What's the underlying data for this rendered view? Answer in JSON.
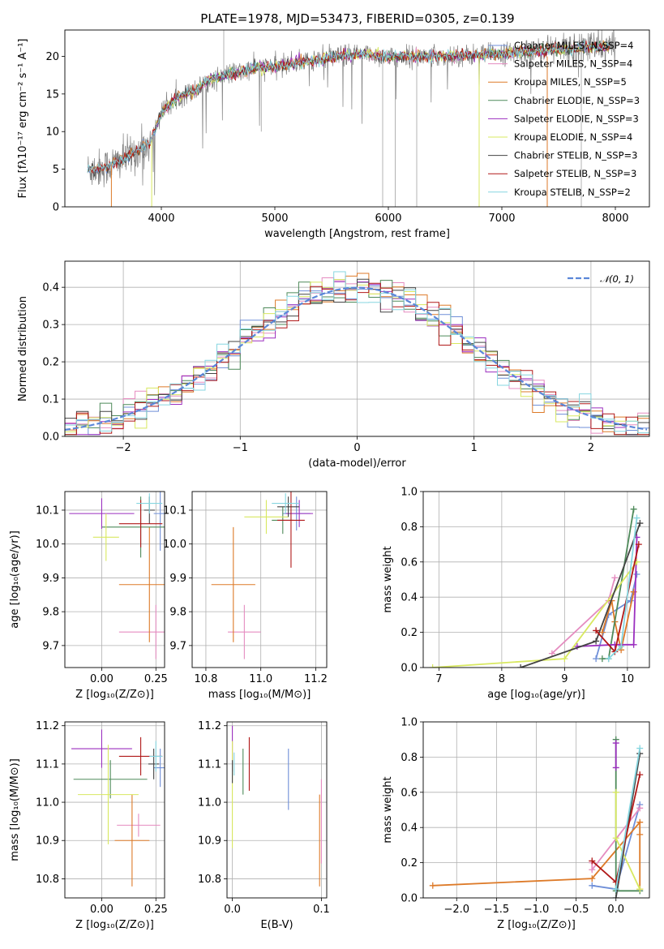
{
  "page": {
    "title": "PLATE=1978, MJD=53473, FIBERID=0305, z=0.139"
  },
  "palette": {
    "Chabrier MILES": "#6f8fd8",
    "Salpeter MILES": "#e58cc0",
    "Kroupa MILES": "#dd7a28",
    "Chabrier ELODIE": "#4e8a5a",
    "Salpeter ELODIE": "#9b2fbf",
    "Kroupa ELODIE": "#d8e860",
    "Chabrier STELIB": "#444444",
    "Salpeter STELIB": "#b01818",
    "Kroupa STELIB": "#86d6e0",
    "data": "#808080",
    "normal": "#5b87d8"
  },
  "chart_data": [
    {
      "id": "spectrum",
      "type": "line",
      "title": "PLATE=1978, MJD=53473, FIBERID=0305, z=0.139",
      "xlabel": "wavelength [Angstrom, rest frame]",
      "ylabel": "Flux [fλ10⁻¹⁷ erg cm⁻² s⁻¹ A⁻¹]",
      "xlim": [
        3150,
        8300
      ],
      "ylim": [
        0,
        23.5
      ],
      "xticks": [
        "4000",
        "5000",
        "6000",
        "7000",
        "8000"
      ],
      "yticks": [
        "0",
        "5",
        "10",
        "15",
        "20"
      ],
      "legend_position": "top-right",
      "legend": [
        "Chabrier MILES, N_SSP=4",
        "Salpeter MILES, N_SSP=4",
        "Kroupa MILES, N_SSP=5",
        "Chabrier ELODIE, N_SSP=3",
        "Salpeter ELODIE, N_SSP=3",
        "Kroupa ELODIE, N_SSP=4",
        "Chabrier STELIB, N_SSP=3",
        "Salpeter STELIB, N_SSP=3",
        "Kroupa STELIB, N_SSP=2"
      ],
      "continuum": [
        [
          3350,
          4.9
        ],
        [
          3500,
          5.2
        ],
        [
          3650,
          6.2
        ],
        [
          3800,
          7.5
        ],
        [
          3900,
          8.5
        ],
        [
          4000,
          12.5
        ],
        [
          4100,
          14.0
        ],
        [
          4200,
          15.0
        ],
        [
          4300,
          15.4
        ],
        [
          4400,
          16.7
        ],
        [
          4500,
          17.2
        ],
        [
          4600,
          17.7
        ],
        [
          4700,
          17.9
        ],
        [
          4800,
          18.3
        ],
        [
          4900,
          18.6
        ],
        [
          5000,
          18.6
        ],
        [
          5200,
          19.2
        ],
        [
          5400,
          19.6
        ],
        [
          5600,
          20.1
        ],
        [
          5800,
          20.3
        ],
        [
          6000,
          19.9
        ],
        [
          6200,
          20.0
        ],
        [
          6400,
          20.0
        ],
        [
          6600,
          20.1
        ],
        [
          6800,
          20.2
        ],
        [
          7000,
          20.4
        ],
        [
          7200,
          20.6
        ],
        [
          7400,
          20.8
        ],
        [
          7600,
          21.0
        ],
        [
          7800,
          21.3
        ],
        [
          8000,
          21.2
        ]
      ],
      "model_ranges": [
        [
          3350,
          3950
        ],
        [
          3950,
          7950
        ],
        [
          3350,
          7950
        ],
        [
          3950,
          7950
        ],
        [
          3950,
          7950
        ],
        [
          3950,
          7950
        ],
        [
          3350,
          7950
        ],
        [
          3350,
          7950
        ],
        [
          3350,
          7950
        ]
      ],
      "data_range": [
        3350,
        8000
      ],
      "grid": false
    },
    {
      "id": "residuals",
      "type": "histogram",
      "xlabel": "(data-model)/error",
      "ylabel": "Normed distribution",
      "xlim": [
        -2.5,
        2.5
      ],
      "ylim": [
        0,
        0.47
      ],
      "xticks": [
        "−2",
        "−1",
        "0",
        "1",
        "2"
      ],
      "yticks": [
        "0.0",
        "0.1",
        "0.2",
        "0.3",
        "0.4"
      ],
      "legend": [
        "𝒩(0, 1)"
      ],
      "legend_position": "top-right",
      "bin_width": 0.1,
      "grid": true
    },
    {
      "id": "age_vs_Z",
      "type": "errorbar",
      "xlabel": "Z [log₁₀(Z/Z⊙)]",
      "ylabel": "age  [log₁₀(age/yr)]",
      "xlim": [
        -0.17,
        0.29
      ],
      "ylim": [
        9.635,
        10.155
      ],
      "xticks": [
        "0.00",
        "0.25"
      ],
      "xtick_values": [
        0,
        0.25
      ],
      "yticks": [
        "9.7",
        "9.8",
        "9.9",
        "10.0",
        "10.1"
      ],
      "ytick_values": [
        9.7,
        9.8,
        9.9,
        10.0,
        10.1
      ],
      "points": [
        {
          "x": 0.27,
          "y": 10.09,
          "xerr": 0.03,
          "yerr": 0.11
        },
        {
          "x": 0.25,
          "y": 9.74,
          "xerr": 0.17,
          "yerr": 0.08
        },
        {
          "x": 0.22,
          "y": 9.88,
          "xerr": 0.14,
          "yerr": 0.17
        },
        {
          "x": 0.18,
          "y": 10.05,
          "xerr": 0.18,
          "yerr": 0.09
        },
        {
          "x": 0.0,
          "y": 10.09,
          "xerr": 0.15,
          "yerr": 0.045
        },
        {
          "x": 0.02,
          "y": 10.02,
          "xerr": 0.06,
          "yerr": 0.07
        },
        {
          "x": 0.22,
          "y": 10.1,
          "xerr": 0.025,
          "yerr": 0.04
        },
        {
          "x": 0.18,
          "y": 10.06,
          "xerr": 0.1,
          "yerr": 0.07
        },
        {
          "x": 0.22,
          "y": 10.12,
          "xerr": 0.06,
          "yerr": 0.03
        }
      ],
      "grid": true
    },
    {
      "id": "age_vs_mass",
      "type": "errorbar",
      "xlabel": "mass [log₁₀(M/M⊙)]",
      "ylabel": "",
      "xlim": [
        10.75,
        11.24
      ],
      "ylim": [
        9.635,
        10.155
      ],
      "xticks": [
        "10.8",
        "11.0",
        "11.2"
      ],
      "xtick_values": [
        10.8,
        11.0,
        11.2
      ],
      "yticks": [
        "9.7",
        "9.8",
        "9.9",
        "10.0",
        "10.1"
      ],
      "ytick_values": [
        9.7,
        9.8,
        9.9,
        10.0,
        10.1
      ],
      "points": [
        {
          "x": 11.13,
          "y": 10.09,
          "xerr": 0.05,
          "yerr": 0.05
        },
        {
          "x": 10.94,
          "y": 9.74,
          "xerr": 0.06,
          "yerr": 0.08
        },
        {
          "x": 10.9,
          "y": 9.88,
          "xerr": 0.08,
          "yerr": 0.17
        },
        {
          "x": 11.08,
          "y": 10.07,
          "xerr": 0.04,
          "yerr": 0.04
        },
        {
          "x": 11.14,
          "y": 10.09,
          "xerr": 0.05,
          "yerr": 0.04
        },
        {
          "x": 11.02,
          "y": 10.08,
          "xerr": 0.08,
          "yerr": 0.05
        },
        {
          "x": 11.1,
          "y": 10.11,
          "xerr": 0.04,
          "yerr": 0.03
        },
        {
          "x": 11.11,
          "y": 10.07,
          "xerr": 0.05,
          "yerr": 0.14
        },
        {
          "x": 11.09,
          "y": 10.12,
          "xerr": 0.05,
          "yerr": 0.03
        }
      ],
      "grid": true
    },
    {
      "id": "weight_vs_age",
      "type": "line",
      "xlabel": "age  [log₁₀(age/yr)]",
      "ylabel": "mass weight",
      "xlim": [
        6.75,
        10.35
      ],
      "ylim": [
        0,
        1.0
      ],
      "xticks": [
        "7",
        "8",
        "9",
        "10"
      ],
      "xtick_values": [
        7,
        8,
        9,
        10
      ],
      "yticks": [
        "0.0",
        "0.2",
        "0.4",
        "0.6",
        "0.8",
        "1.0"
      ],
      "ytick_values": [
        0,
        0.2,
        0.4,
        0.6,
        0.8,
        1.0
      ],
      "series": [
        {
          "points": [
            [
              9.5,
              0.05
            ],
            [
              9.7,
              0.3
            ],
            [
              10.05,
              0.38
            ],
            [
              10.15,
              0.53
            ]
          ]
        },
        {
          "points": [
            [
              8.8,
              0.08
            ],
            [
              9.7,
              0.38
            ],
            [
              9.8,
              0.51
            ]
          ]
        },
        {
          "points": [
            [
              9.6,
              0.2
            ],
            [
              9.75,
              0.38
            ],
            [
              9.8,
              0.26
            ],
            [
              9.9,
              0.1
            ],
            [
              10.1,
              0.43
            ]
          ]
        },
        {
          "points": [
            [
              9.6,
              0.05
            ],
            [
              9.7,
              0.05
            ],
            [
              10.1,
              0.9
            ]
          ]
        },
        {
          "points": [
            [
              9.2,
              0.12
            ],
            [
              9.8,
              0.13
            ],
            [
              10.1,
              0.13
            ],
            [
              10.15,
              0.74
            ]
          ]
        },
        {
          "points": [
            [
              6.9,
              0.0
            ],
            [
              9.0,
              0.05
            ],
            [
              10.15,
              0.6
            ]
          ]
        },
        {
          "points": [
            [
              8.3,
              0.0
            ],
            [
              9.5,
              0.15
            ],
            [
              10.2,
              0.82
            ]
          ]
        },
        {
          "points": [
            [
              9.5,
              0.21
            ],
            [
              9.8,
              0.09
            ],
            [
              10.18,
              0.7
            ]
          ]
        },
        {
          "points": [
            [
              9.7,
              0.05
            ],
            [
              9.9,
              0.12
            ],
            [
              10.15,
              0.85
            ]
          ]
        }
      ],
      "grid": true
    },
    {
      "id": "mass_vs_Z",
      "type": "errorbar",
      "xlabel": "Z [log₁₀(Z/Z⊙)]",
      "ylabel": "mass [log₁₀(M/M⊙)]",
      "xlim": [
        -0.17,
        0.29
      ],
      "ylim": [
        10.75,
        11.21
      ],
      "xticks": [
        "0.00",
        "0.25"
      ],
      "xtick_values": [
        0,
        0.25
      ],
      "yticks": [
        "10.8",
        "10.9",
        "11.0",
        "11.1",
        "11.2"
      ],
      "ytick_values": [
        10.8,
        10.9,
        11.0,
        11.1,
        11.2
      ],
      "points": [
        {
          "x": 0.27,
          "y": 11.09,
          "xerr": 0.03,
          "yerr": 0.05
        },
        {
          "x": 0.17,
          "y": 10.94,
          "xerr": 0.1,
          "yerr": 0.03
        },
        {
          "x": 0.14,
          "y": 10.9,
          "xerr": 0.08,
          "yerr": 0.12
        },
        {
          "x": 0.04,
          "y": 11.06,
          "xerr": 0.17,
          "yerr": 0.05
        },
        {
          "x": 0.0,
          "y": 11.14,
          "xerr": 0.14,
          "yerr": 0.05
        },
        {
          "x": 0.03,
          "y": 11.02,
          "xerr": 0.14,
          "yerr": 0.13
        },
        {
          "x": 0.24,
          "y": 11.1,
          "xerr": 0.025,
          "yerr": 0.04
        },
        {
          "x": 0.18,
          "y": 11.12,
          "xerr": 0.1,
          "yerr": 0.05
        },
        {
          "x": 0.25,
          "y": 11.12,
          "xerr": 0.03,
          "yerr": 0.04
        }
      ],
      "grid": true
    },
    {
      "id": "mass_vs_ebv",
      "type": "errorbar",
      "xlabel": "E(B-V)",
      "ylabel": "",
      "xlim": [
        -0.006,
        0.106
      ],
      "ylim": [
        10.75,
        11.21
      ],
      "xticks": [
        "0.0",
        "0.1"
      ],
      "xtick_values": [
        0,
        0.1
      ],
      "yticks": [
        "10.8",
        "10.9",
        "11.0",
        "11.1",
        "11.2"
      ],
      "ytick_values": [
        10.8,
        10.9,
        11.0,
        11.1,
        11.2
      ],
      "points": [
        {
          "x": 0.063,
          "y": 11.06,
          "xerr": 0,
          "yerr": 0.08
        },
        {
          "x": 0.1,
          "y": 10.95,
          "xerr": 0,
          "yerr": 0.11
        },
        {
          "x": 0.098,
          "y": 10.9,
          "xerr": 0,
          "yerr": 0.12
        },
        {
          "x": 0.012,
          "y": 11.08,
          "xerr": 0,
          "yerr": 0.06
        },
        {
          "x": 0.0,
          "y": 11.14,
          "xerr": 0,
          "yerr": 0.06
        },
        {
          "x": 0.0,
          "y": 11.02,
          "xerr": 0,
          "yerr": 0.14
        },
        {
          "x": 0.0,
          "y": 11.08,
          "xerr": 0,
          "yerr": 0.03
        },
        {
          "x": 0.019,
          "y": 11.1,
          "xerr": 0,
          "yerr": 0.07
        },
        {
          "x": 0.002,
          "y": 11.1,
          "xerr": 0,
          "yerr": 0.03
        }
      ],
      "grid": true
    },
    {
      "id": "weight_vs_Z",
      "type": "line",
      "xlabel": "Z [log₁₀(Z/Z⊙)]",
      "ylabel": "mass weight",
      "xlim": [
        -2.42,
        0.42
      ],
      "ylim": [
        0,
        1.0
      ],
      "xticks": [
        "−2.0",
        "−1.5",
        "−1.0",
        "−0.5",
        "0.0"
      ],
      "xtick_values": [
        -2.0,
        -1.5,
        -1.0,
        -0.5,
        0.0
      ],
      "yticks": [
        "0.0",
        "0.2",
        "0.4",
        "0.6",
        "0.8",
        "1.0"
      ],
      "ytick_values": [
        0,
        0.2,
        0.4,
        0.6,
        0.8,
        1.0
      ],
      "series": [
        {
          "points": [
            [
              -0.3,
              0.07
            ],
            [
              0.0,
              0.05
            ],
            [
              0.3,
              0.53
            ]
          ]
        },
        {
          "points": [
            [
              -0.3,
              0.2
            ],
            [
              -0.3,
              0.16
            ],
            [
              0.3,
              0.51
            ]
          ]
        },
        {
          "points": [
            [
              -2.3,
              0.07
            ],
            [
              -0.3,
              0.11
            ],
            [
              0.3,
              0.43
            ],
            [
              0.3,
              0.36
            ],
            [
              0.3,
              0.05
            ]
          ]
        },
        {
          "points": [
            [
              0.0,
              0.9
            ],
            [
              0.0,
              0.04
            ],
            [
              0.3,
              0.04
            ]
          ]
        },
        {
          "points": [
            [
              0.0,
              0.74
            ],
            [
              0.0,
              0.88
            ]
          ]
        },
        {
          "points": [
            [
              0.0,
              0.6
            ],
            [
              0.0,
              0.34
            ],
            [
              0.3,
              0.05
            ]
          ]
        },
        {
          "points": [
            [
              0.0,
              0.0
            ],
            [
              0.3,
              0.82
            ]
          ]
        },
        {
          "points": [
            [
              -0.3,
              0.21
            ],
            [
              0.0,
              0.09
            ],
            [
              0.3,
              0.7
            ]
          ]
        },
        {
          "points": [
            [
              0.0,
              0.05
            ],
            [
              0.3,
              0.85
            ]
          ]
        }
      ],
      "grid": true
    }
  ]
}
